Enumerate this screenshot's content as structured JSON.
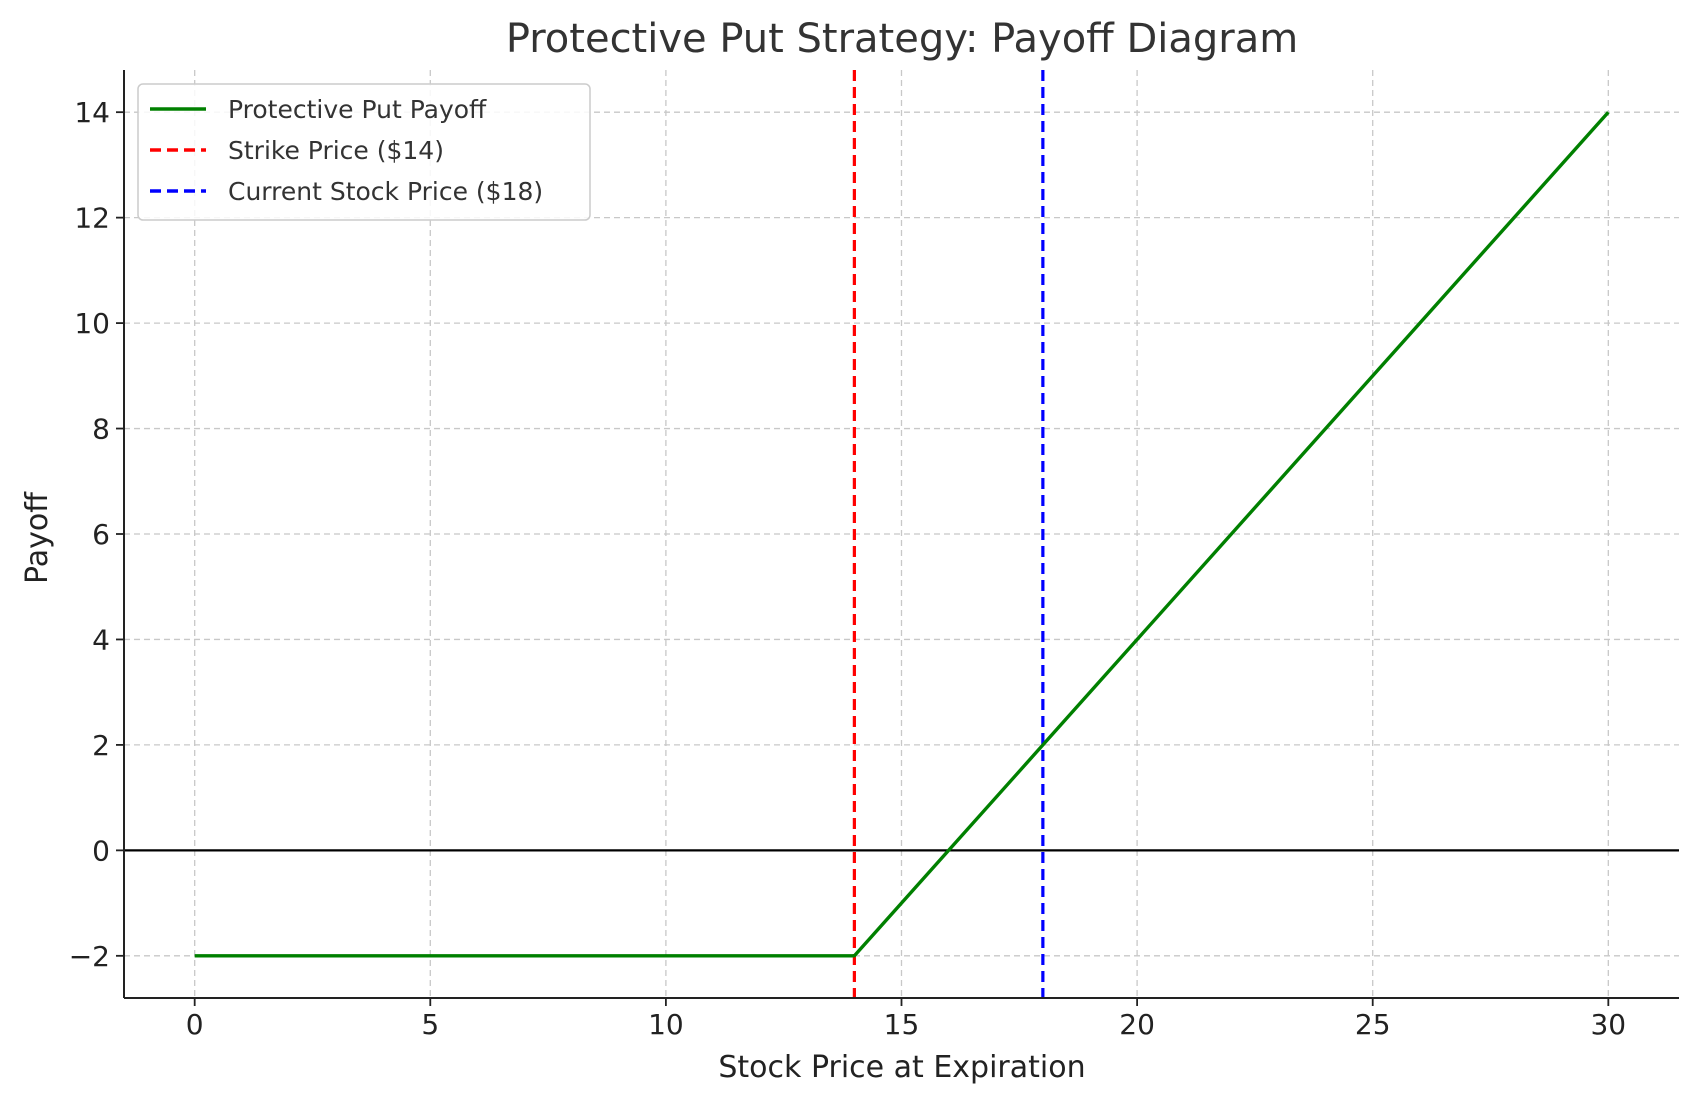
{
  "chart_data": {
    "type": "line",
    "title": "Protective Put Strategy: Payoff Diagram",
    "xlabel": "Stock Price at Expiration",
    "ylabel": "Payoff",
    "xlim": [
      -1.5,
      31.5
    ],
    "ylim": [
      -2.8,
      14.8
    ],
    "xticks": [
      0,
      5,
      10,
      15,
      20,
      25,
      30
    ],
    "yticks": [
      -2,
      0,
      2,
      4,
      6,
      8,
      10,
      12,
      14
    ],
    "ytick_labels": [
      "−2",
      "0",
      "2",
      "4",
      "6",
      "8",
      "10",
      "12",
      "14"
    ],
    "grid": true,
    "legend_position": "top-left",
    "colors": {
      "payoff": "#008000",
      "strike": "#ff0000",
      "current": "#0000ff",
      "zero_line": "#000000"
    },
    "series": [
      {
        "name": "Protective Put Payoff",
        "style": "solid",
        "x": [
          0,
          14,
          14.4,
          16,
          18,
          30
        ],
        "y": [
          -2,
          -2,
          -1.6,
          0,
          2,
          14
        ]
      }
    ],
    "vertical_lines": [
      {
        "name": "Strike Price ($14)",
        "x": 14,
        "style": "dashed"
      },
      {
        "name": "Current Stock Price ($18)",
        "x": 18,
        "style": "dashed"
      }
    ],
    "horizontal_lines": [
      {
        "y": 0,
        "style": "solid"
      }
    ]
  }
}
